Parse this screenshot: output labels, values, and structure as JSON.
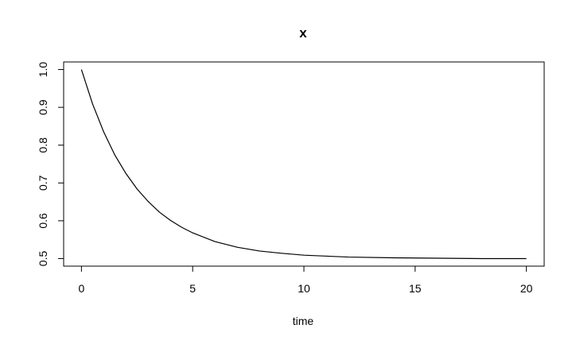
{
  "chart_data": {
    "type": "line",
    "title": "x",
    "xlabel": "time",
    "x": [
      0,
      0.5,
      1,
      1.5,
      2,
      2.5,
      3,
      3.5,
      4,
      4.5,
      5,
      6,
      7,
      8,
      9,
      10,
      12,
      14,
      16,
      18,
      20
    ],
    "values": [
      1,
      0.909,
      0.835,
      0.774,
      0.725,
      0.684,
      0.651,
      0.623,
      0.601,
      0.583,
      0.568,
      0.545,
      0.53,
      0.52,
      0.514,
      0.509,
      0.504,
      0.502,
      0.501,
      0.5,
      0.5
    ],
    "color": "#000000",
    "xlim": [
      -0.8,
      20.8
    ],
    "xticks": [
      0,
      5,
      10,
      15,
      20
    ],
    "ylim": [
      0.48,
      1.02
    ],
    "yticks": [
      0.5,
      0.6,
      0.7,
      0.8,
      0.9,
      {
        "value": 1,
        "label": "1.0"
      }
    ]
  }
}
